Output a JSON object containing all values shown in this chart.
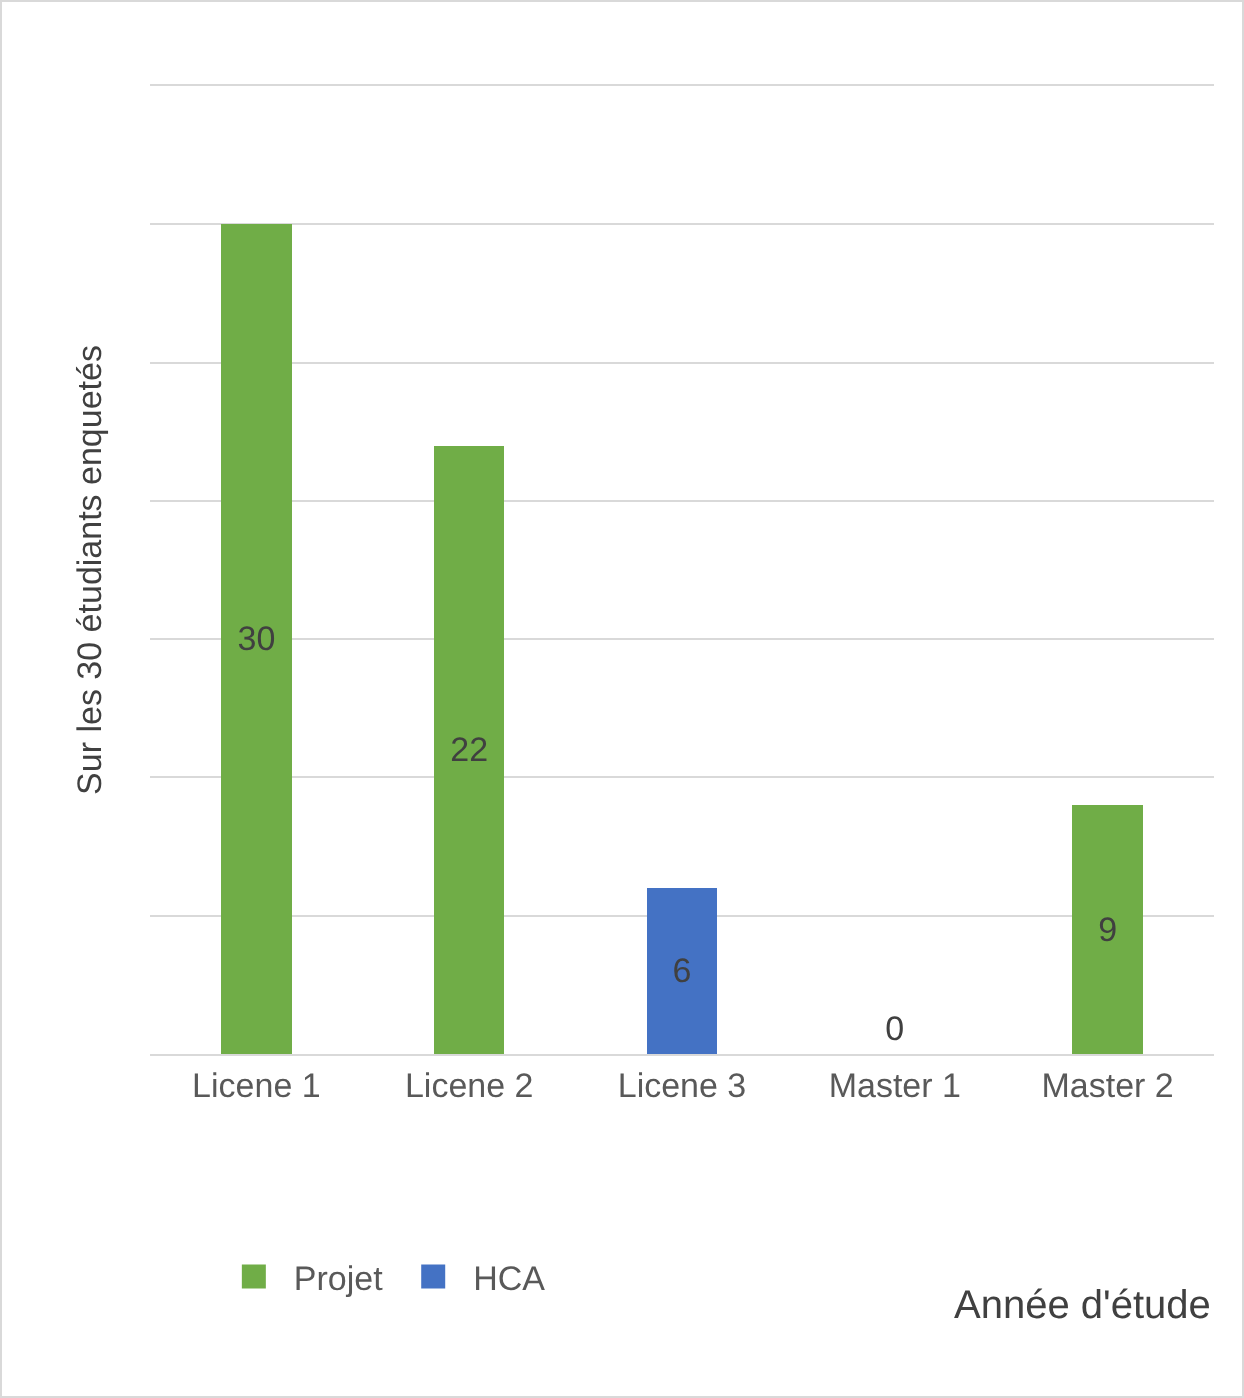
{
  "chart_data": {
    "type": "bar",
    "stacked": true,
    "xlabel": "Année d'étude",
    "ylabel": "Sur les 30 étudiants enquetés",
    "categories": [
      "Licene 1",
      "Licene 2",
      "Licene 3",
      "Master 1",
      "Master 2"
    ],
    "series": [
      {
        "name": "Projet",
        "color": "#70ad47",
        "values": [
          30,
          22,
          null,
          0,
          9
        ]
      },
      {
        "name": "HCA",
        "color": "#4472c4",
        "values": [
          null,
          null,
          6,
          null,
          null
        ]
      }
    ],
    "ylim": [
      0,
      35
    ],
    "yticks": [
      {
        "value": 0,
        "label": null
      },
      {
        "value": 5,
        "label": null
      },
      {
        "value": 10,
        "label": null
      },
      {
        "value": 15,
        "label": null
      },
      {
        "value": 20,
        "label": null
      },
      {
        "value": 25,
        "label": null
      },
      {
        "value": 30,
        "label": null
      },
      {
        "value": 35,
        "label": null
      }
    ],
    "tick_labels": "x",
    "grid": "y",
    "legend": "bottom left",
    "data_labels": true
  }
}
